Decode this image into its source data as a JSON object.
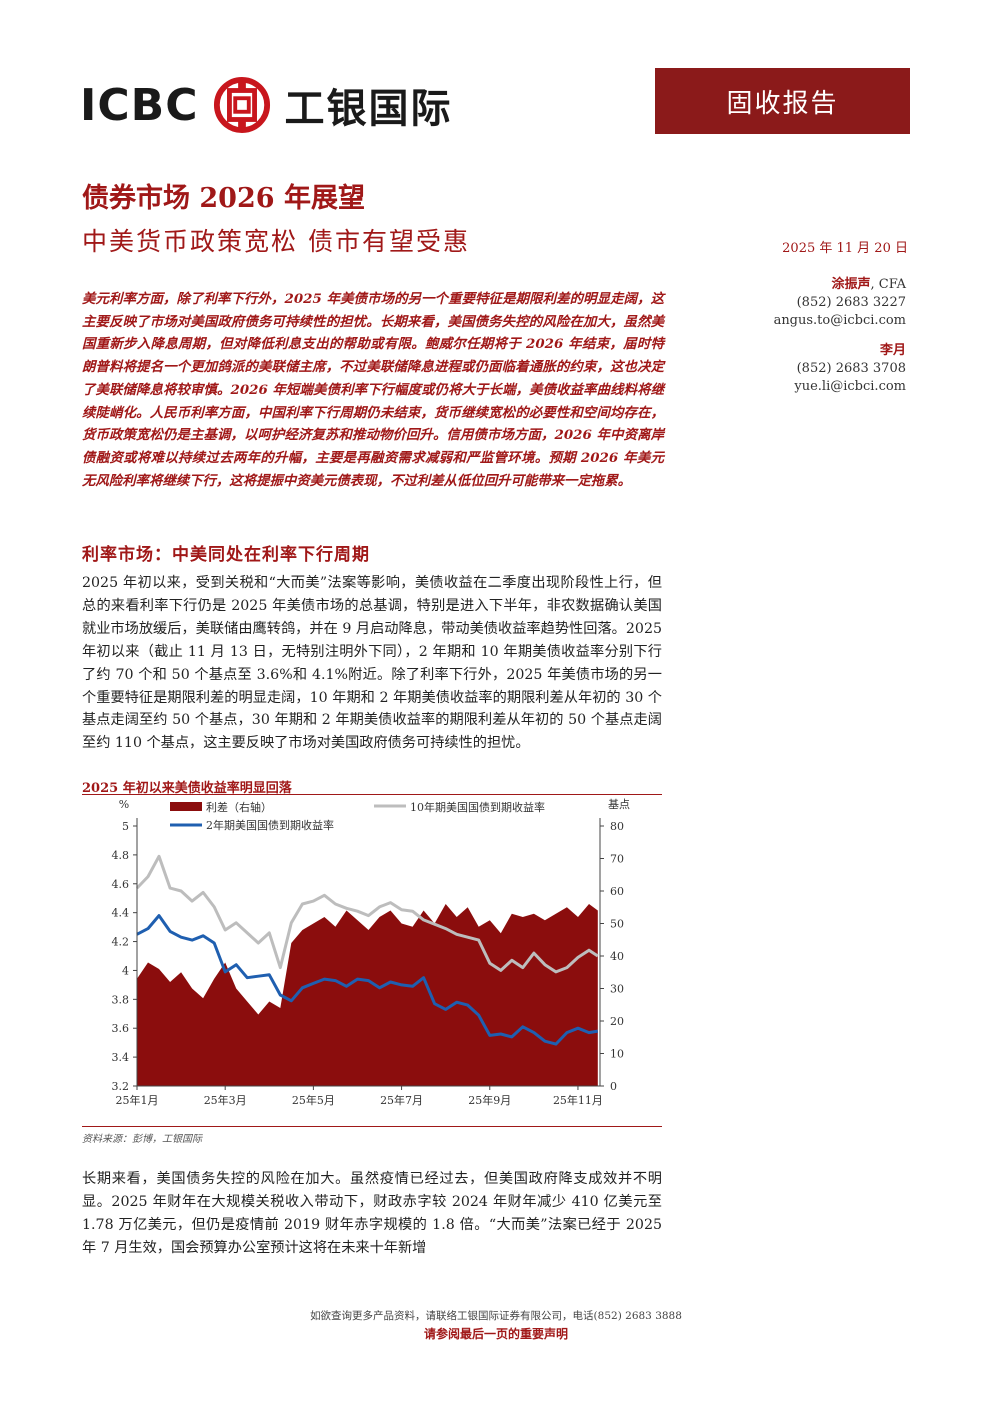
{
  "header": {
    "logo_en": "ICBC",
    "logo_cn": "工银国际",
    "report_type": "固收报告"
  },
  "title": "债券市场 2026 年展望",
  "subtitle": "中美货币政策宽松  债市有望受惠",
  "date": "2025 年 11 月 20 日",
  "authors": [
    {
      "name": "涂振声",
      "suffix": ", CFA",
      "phone": "(852) 2683 3227",
      "email": "angus.to@icbci.com"
    },
    {
      "name": "李月",
      "suffix": "",
      "phone": "(852) 2683 3708",
      "email": "yue.li@icbci.com"
    }
  ],
  "summary": "美元利率方面，除了利率下行外，2025 年美债市场的另一个重要特征是期限利差的明显走阔，这主要反映了市场对美国政府债务可持续性的担忧。长期来看，美国债务失控的风险在加大，虽然美国重新步入降息周期，但对降低利息支出的帮助或有限。鲍威尔任期将于 2026 年结束，届时特朗普料将提名一个更加鸽派的美联储主席，不过美联储降息进程或仍面临着通胀的约束，这也决定了美联储降息将较审慎。2026 年短端美债利率下行幅度或仍将大于长端，美债收益率曲线料将继续陡峭化。人民币利率方面，中国利率下行周期仍未结束，货币继续宽松的必要性和空间均存在，货币政策宽松仍是主基调，以呵护经济复苏和推动物价回升。信用债市场方面，2026 年中资离岸债融资或将难以持续过去两年的升幅，主要是再融资需求减弱和严监管环境。预期 2026 年美元无风险利率将继续下行，这将提振中资美元债表现，不过利差从低位回升可能带来一定拖累。",
  "section_title": "利率市场：中美同处在利率下行周期",
  "paragraph1": "2025 年初以来，受到关税和“大而美”法案等影响，美债收益在二季度出现阶段性上行，但总的来看利率下行仍是 2025 年美债市场的总基调，特别是进入下半年，非农数据确认美国就业市场放缓后，美联储由鹰转鸽，并在 9 月启动降息，带动美债收益率趋势性回落。2025 年初以来（截止 11 月 13 日，无特别注明外下同），2 年期和 10 年期美债收益率分别下行了约 70 个和 50 个基点至 3.6%和 4.1%附近。除了利率下行外，2025 年美债市场的另一个重要特征是期限利差的明显走阔，10 年期和 2 年期美债收益率的期限利差从年初的 30 个基点走阔至约 50 个基点，30 年期和 2 年期美债收益率的期限利差从年初的 50 个基点走阔至约 110 个基点，这主要反映了市场对美国政府债务可持续性的担忧。",
  "chart_title": "2025 年初以来美债收益率明显回落",
  "source": "资料来源：彭博，工银国际",
  "paragraph2": "长期来看，美国债务失控的风险在加大。虽然疫情已经过去，但美国政府降支成效并不明显。2025 年财年在大规模关税收入带动下，财政赤字较 2024 年财年减少 410 亿美元至 1.78 万亿美元，但仍是疫情前 2019 财年赤字规模的 1.8 倍。“大而美”法案已经于 2025 年 7 月生效，国会预算办公室预计这将在未来十年新增",
  "footer": {
    "contact": "如欲查询更多产品资料，请联络工银国际证券有限公司，电话(852) 2683 3888",
    "note": "请参阅最后一页的重要声明"
  },
  "chart_data": {
    "type": "line",
    "left_axis_unit": "%",
    "right_axis_unit": "基点",
    "left_ticks": [
      "3.2",
      "3.4",
      "3.6",
      "3.8",
      "4",
      "4.2",
      "4.4",
      "4.6",
      "4.8",
      "5"
    ],
    "right_ticks": [
      "0",
      "10",
      "20",
      "30",
      "40",
      "50",
      "60",
      "70",
      "80"
    ],
    "x_ticks": [
      "25年1月",
      "25年3月",
      "25年5月",
      "25年7月",
      "25年9月",
      "25年11月"
    ],
    "ylim_left": [
      3.2,
      5.0
    ],
    "ylim_right": [
      0,
      80
    ],
    "x_range": [
      0,
      10.5
    ],
    "legend": [
      "利差（右轴）",
      "10年期美国国债到期收益率",
      "2年期美国国债到期收益率"
    ],
    "series": [
      {
        "name": "利差（右轴）",
        "axis": "right",
        "color": "#8b0d0d",
        "x": [
          0,
          0.25,
          0.5,
          0.75,
          1,
          1.25,
          1.5,
          1.75,
          2,
          2.25,
          2.5,
          2.75,
          3,
          3.25,
          3.5,
          3.75,
          4,
          4.25,
          4.5,
          4.75,
          5,
          5.25,
          5.5,
          5.75,
          6,
          6.25,
          6.5,
          6.75,
          7,
          7.25,
          7.5,
          7.75,
          8,
          8.25,
          8.5,
          8.75,
          9,
          9.25,
          9.5,
          9.75,
          10,
          10.25,
          10.45
        ],
        "values": [
          33,
          38,
          36,
          32,
          35,
          30,
          27,
          33,
          38,
          30,
          26,
          22,
          26,
          24,
          44,
          48,
          50,
          52,
          49,
          54,
          51,
          48,
          52,
          54,
          50,
          49,
          54,
          50,
          56,
          52,
          55,
          49,
          51,
          47,
          53,
          52,
          53,
          51,
          53,
          55,
          52,
          56,
          54
        ]
      },
      {
        "name": "10年期美国国债到期收益率",
        "axis": "left",
        "color": "#bdbdbd",
        "x": [
          0,
          0.25,
          0.5,
          0.75,
          1,
          1.25,
          1.5,
          1.75,
          2,
          2.25,
          2.5,
          2.75,
          3,
          3.25,
          3.5,
          3.75,
          4,
          4.25,
          4.5,
          4.75,
          5,
          5.25,
          5.5,
          5.75,
          6,
          6.25,
          6.5,
          6.75,
          7,
          7.25,
          7.5,
          7.75,
          8,
          8.25,
          8.5,
          8.75,
          9,
          9.25,
          9.5,
          9.75,
          10,
          10.25,
          10.45
        ],
        "values": [
          4.57,
          4.65,
          4.79,
          4.57,
          4.55,
          4.48,
          4.54,
          4.44,
          4.28,
          4.33,
          4.26,
          4.19,
          4.26,
          4.02,
          4.33,
          4.46,
          4.48,
          4.52,
          4.46,
          4.43,
          4.41,
          4.38,
          4.44,
          4.47,
          4.42,
          4.41,
          4.35,
          4.32,
          4.29,
          4.25,
          4.23,
          4.21,
          4.05,
          4.0,
          4.07,
          4.02,
          4.12,
          4.04,
          3.99,
          4.02,
          4.09,
          4.14,
          4.1
        ]
      },
      {
        "name": "2年期美国国债到期收益率",
        "axis": "left",
        "color": "#1f5fb0",
        "x": [
          0,
          0.25,
          0.5,
          0.75,
          1,
          1.25,
          1.5,
          1.75,
          2,
          2.25,
          2.5,
          2.75,
          3,
          3.25,
          3.5,
          3.75,
          4,
          4.25,
          4.5,
          4.75,
          5,
          5.25,
          5.5,
          5.75,
          6,
          6.25,
          6.5,
          6.75,
          7,
          7.25,
          7.5,
          7.75,
          8,
          8.25,
          8.5,
          8.75,
          9,
          9.25,
          9.5,
          9.75,
          10,
          10.25,
          10.45
        ],
        "values": [
          4.25,
          4.29,
          4.38,
          4.27,
          4.23,
          4.21,
          4.24,
          4.19,
          3.99,
          4.04,
          3.95,
          3.96,
          3.97,
          3.83,
          3.79,
          3.88,
          3.91,
          3.94,
          3.93,
          3.89,
          3.94,
          3.93,
          3.88,
          3.92,
          3.9,
          3.89,
          3.95,
          3.77,
          3.73,
          3.78,
          3.76,
          3.69,
          3.55,
          3.56,
          3.54,
          3.61,
          3.57,
          3.51,
          3.49,
          3.57,
          3.6,
          3.57,
          3.58
        ]
      }
    ]
  }
}
